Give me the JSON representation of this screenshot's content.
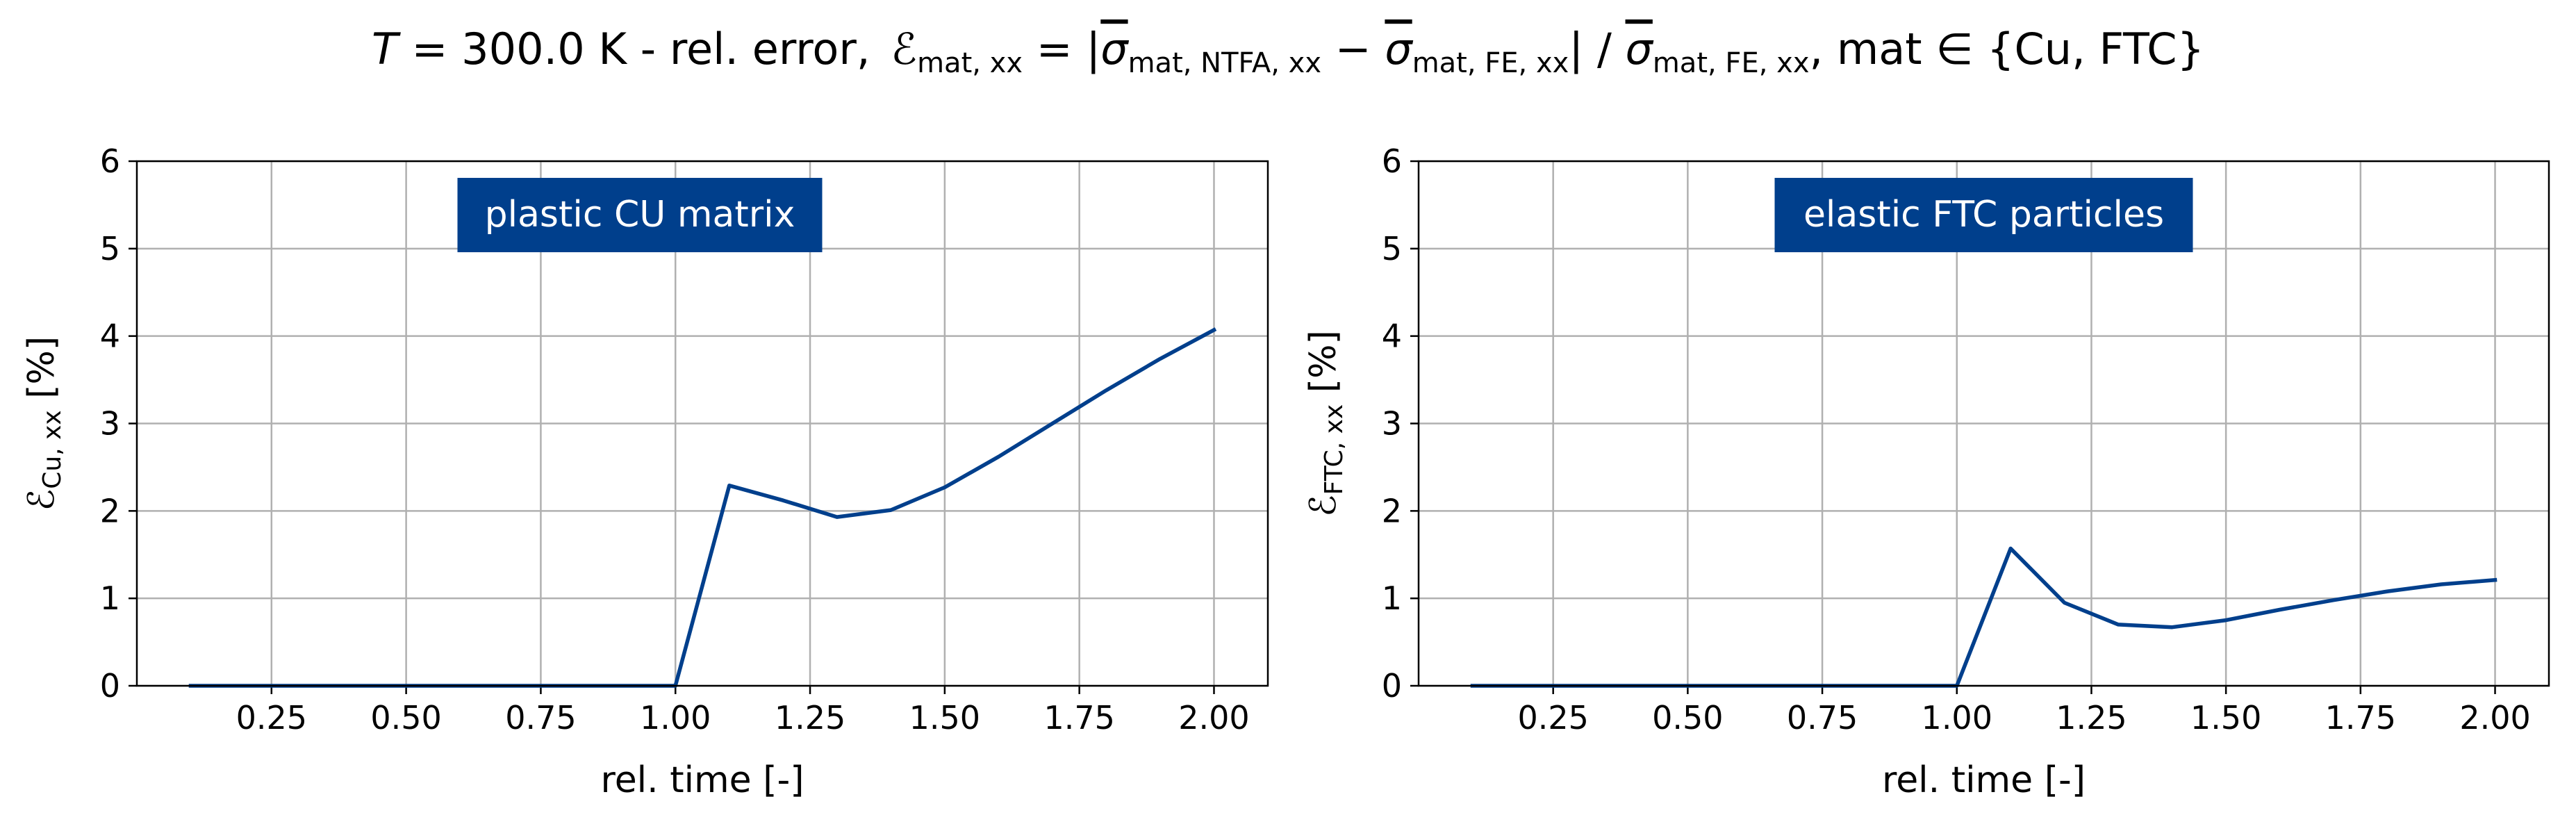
{
  "figure_title": {
    "t_symbol": "T",
    "t_value": " = 300.0 K - rel. error,",
    "eps": "ℰ",
    "eps_sub": "mat, xx",
    "eq1": " = |",
    "sigma": "σ",
    "sub_ntfa": "mat, NTFA, xx",
    "minus": " − ",
    "sub_fe": "mat, FE, xx",
    "slash": "| / ",
    "sub_fe2": "mat, FE, xx",
    "set_text": ",  mat ∈ {Cu, FTC}"
  },
  "colors": {
    "line": "#003f8c",
    "box": "#003f8c",
    "grid": "#b0b0b0",
    "axis": "#000000"
  },
  "chart_data": [
    {
      "type": "line",
      "annotation": "plastic CU matrix",
      "xlabel": "rel. time [-]",
      "ylabel": {
        "symbol": "ℰ",
        "sub": "Cu, xx",
        "unit": " [%]"
      },
      "xlim": [
        0.0,
        2.1
      ],
      "ylim": [
        0,
        6
      ],
      "xticks": [
        "0.25",
        "0.50",
        "0.75",
        "1.00",
        "1.25",
        "1.50",
        "1.75",
        "2.00"
      ],
      "yticks": [
        "0",
        "1",
        "2",
        "3",
        "4",
        "5",
        "6"
      ],
      "grid": true,
      "series": [
        {
          "x": [
            0.1,
            0.2,
            0.3,
            0.4,
            0.5,
            0.6,
            0.7,
            0.8,
            0.9,
            1.0,
            1.1,
            1.2,
            1.3,
            1.4,
            1.5,
            1.6,
            1.7,
            1.8,
            1.9,
            2.0
          ],
          "y": [
            0.0,
            0.0,
            0.0,
            0.0,
            0.0,
            0.0,
            0.0,
            0.0,
            0.0,
            0.0,
            2.29,
            2.12,
            1.93,
            2.01,
            2.27,
            2.62,
            3.0,
            3.38,
            3.74,
            4.07
          ]
        }
      ]
    },
    {
      "type": "line",
      "annotation": "elastic FTC particles",
      "xlabel": "rel. time [-]",
      "ylabel": {
        "symbol": "ℰ",
        "sub": "FTC, xx",
        "unit": " [%]"
      },
      "xlim": [
        0.0,
        2.1
      ],
      "ylim": [
        0,
        6
      ],
      "xticks": [
        "0.25",
        "0.50",
        "0.75",
        "1.00",
        "1.25",
        "1.50",
        "1.75",
        "2.00"
      ],
      "yticks": [
        "0",
        "1",
        "2",
        "3",
        "4",
        "5",
        "6"
      ],
      "grid": true,
      "series": [
        {
          "x": [
            0.1,
            0.2,
            0.3,
            0.4,
            0.5,
            0.6,
            0.7,
            0.8,
            0.9,
            1.0,
            1.1,
            1.2,
            1.3,
            1.4,
            1.5,
            1.6,
            1.7,
            1.8,
            1.9,
            2.0
          ],
          "y": [
            0.0,
            0.0,
            0.0,
            0.0,
            0.0,
            0.0,
            0.0,
            0.0,
            0.0,
            0.0,
            1.57,
            0.95,
            0.7,
            0.67,
            0.75,
            0.87,
            0.98,
            1.08,
            1.16,
            1.21
          ]
        }
      ]
    }
  ]
}
